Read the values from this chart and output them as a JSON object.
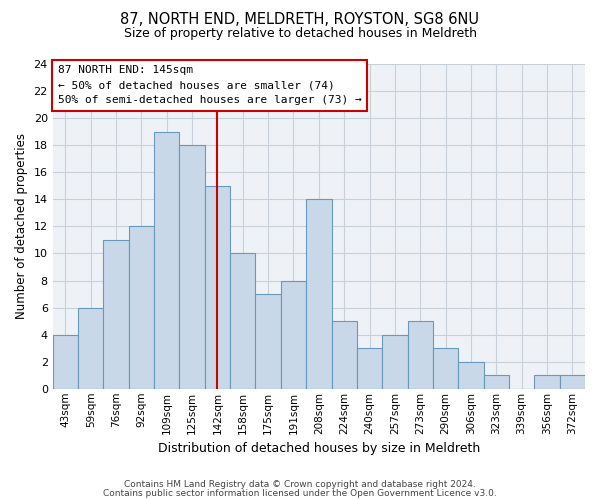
{
  "title": "87, NORTH END, MELDRETH, ROYSTON, SG8 6NU",
  "subtitle": "Size of property relative to detached houses in Meldreth",
  "xlabel": "Distribution of detached houses by size in Meldreth",
  "ylabel": "Number of detached properties",
  "bar_labels": [
    "43sqm",
    "59sqm",
    "76sqm",
    "92sqm",
    "109sqm",
    "125sqm",
    "142sqm",
    "158sqm",
    "175sqm",
    "191sqm",
    "208sqm",
    "224sqm",
    "240sqm",
    "257sqm",
    "273sqm",
    "290sqm",
    "306sqm",
    "323sqm",
    "339sqm",
    "356sqm",
    "372sqm"
  ],
  "bar_values": [
    4,
    6,
    11,
    12,
    19,
    18,
    15,
    10,
    7,
    8,
    14,
    5,
    3,
    4,
    5,
    3,
    2,
    1,
    0,
    1,
    1
  ],
  "bar_color": "#c8d8e8",
  "bar_edge_color": "#6699bb",
  "vline_x": 6,
  "vline_color": "#cc0000",
  "annotation_box_text": "87 NORTH END: 145sqm\n← 50% of detached houses are smaller (74)\n50% of semi-detached houses are larger (73) →",
  "box_edge_color": "#cc0000",
  "ylim": [
    0,
    24
  ],
  "yticks": [
    0,
    2,
    4,
    6,
    8,
    10,
    12,
    14,
    16,
    18,
    20,
    22,
    24
  ],
  "grid_color": "#c8d0da",
  "bg_color": "#eef2f7",
  "footer_line1": "Contains HM Land Registry data © Crown copyright and database right 2024.",
  "footer_line2": "Contains public sector information licensed under the Open Government Licence v3.0."
}
